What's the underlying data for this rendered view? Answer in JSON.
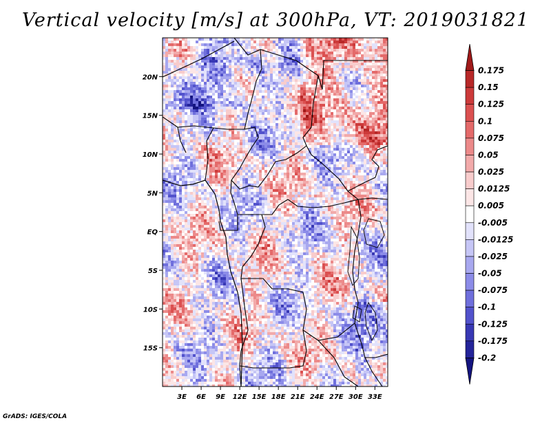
{
  "title": "Vertical velocity [m/s] at 300hPa, VT: 2019031821",
  "credit": "GrADS: IGES/COLA",
  "map": {
    "lon_range": [
      0,
      35
    ],
    "lat_range": [
      -20,
      25
    ],
    "lat_ticks": [
      {
        "lat": 20,
        "label": "20N"
      },
      {
        "lat": 15,
        "label": "15N"
      },
      {
        "lat": 10,
        "label": "10N"
      },
      {
        "lat": 5,
        "label": "5N"
      },
      {
        "lat": 0,
        "label": "EQ"
      },
      {
        "lat": -5,
        "label": "5S"
      },
      {
        "lat": -10,
        "label": "10S"
      },
      {
        "lat": -15,
        "label": "15S"
      }
    ],
    "lon_ticks": [
      {
        "lon": 3,
        "label": "3E"
      },
      {
        "lon": 6,
        "label": "6E"
      },
      {
        "lon": 9,
        "label": "9E"
      },
      {
        "lon": 12,
        "label": "12E"
      },
      {
        "lon": 15,
        "label": "15E"
      },
      {
        "lon": 18,
        "label": "18E"
      },
      {
        "lon": 21,
        "label": "21E"
      },
      {
        "lon": 24,
        "label": "24E"
      },
      {
        "lon": 27,
        "label": "27E"
      },
      {
        "lon": 30,
        "label": "30E"
      },
      {
        "lon": 33,
        "label": "33E"
      }
    ]
  },
  "colorbar": {
    "labels": [
      "0.175",
      "0.15",
      "0.125",
      "0.1",
      "0.075",
      "0.05",
      "0.025",
      "0.0125",
      "0.005",
      "-0.005",
      "-0.0125",
      "-0.025",
      "-0.05",
      "-0.075",
      "-0.1",
      "-0.125",
      "-0.175",
      "-0.2"
    ],
    "colors": [
      "#a01919",
      "#b82828",
      "#cc3a3a",
      "#db5050",
      "#e46a6a",
      "#ec8a8a",
      "#f2aaaa",
      "#f8cccc",
      "#fce6e6",
      "#ffffff",
      "#e2e2fb",
      "#c6c6f6",
      "#a8a8ef",
      "#8c8ce8",
      "#6f6fdc",
      "#5252cc",
      "#3838b4",
      "#24249a",
      "#141480"
    ]
  }
}
